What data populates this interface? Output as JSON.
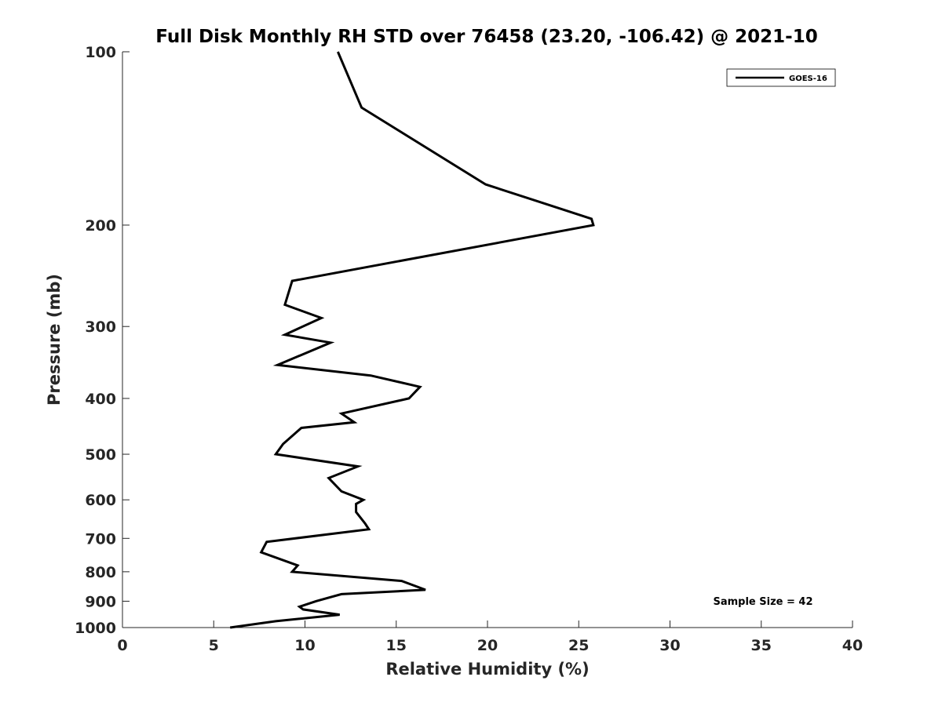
{
  "chart_data": {
    "type": "line",
    "title": "Full Disk Monthly RH STD over 76458 (23.20, -106.42) @ 2021-10",
    "xlabel": "Relative Humidity (%)",
    "ylabel": "Pressure (mb)",
    "xlim": [
      0,
      40
    ],
    "ylim": [
      100,
      1000
    ],
    "yscale": "log",
    "yreversed": true,
    "xticks": [
      0,
      5,
      10,
      15,
      20,
      25,
      30,
      35,
      40
    ],
    "yticks": [
      100,
      200,
      300,
      400,
      500,
      600,
      700,
      800,
      900,
      1000
    ],
    "grid": false,
    "legend": "top-right",
    "annotation": "Sample Size = 42",
    "series": [
      {
        "name": "GOES-16",
        "color": "#000000",
        "x": [
          11.8,
          13.1,
          19.9,
          25.7,
          25.8,
          9.3,
          8.9,
          10.9,
          8.9,
          11.4,
          8.5,
          13.6,
          16.3,
          15.7,
          12.0,
          12.7,
          9.8,
          8.8,
          8.4,
          12.9,
          11.3,
          12.0,
          13.2,
          12.8,
          12.8,
          13.3,
          13.5,
          7.9,
          7.6,
          9.6,
          9.3,
          15.3,
          16.6,
          12.0,
          10.6,
          9.7,
          9.9,
          11.9,
          8.4,
          5.9
        ],
        "y": [
          100,
          125,
          170,
          195,
          200,
          250,
          275,
          290,
          310,
          320,
          350,
          365,
          382,
          400,
          425,
          440,
          450,
          480,
          500,
          525,
          550,
          580,
          600,
          610,
          630,
          660,
          675,
          710,
          740,
          780,
          800,
          830,
          860,
          875,
          900,
          920,
          930,
          950,
          975,
          1000
        ]
      }
    ]
  }
}
